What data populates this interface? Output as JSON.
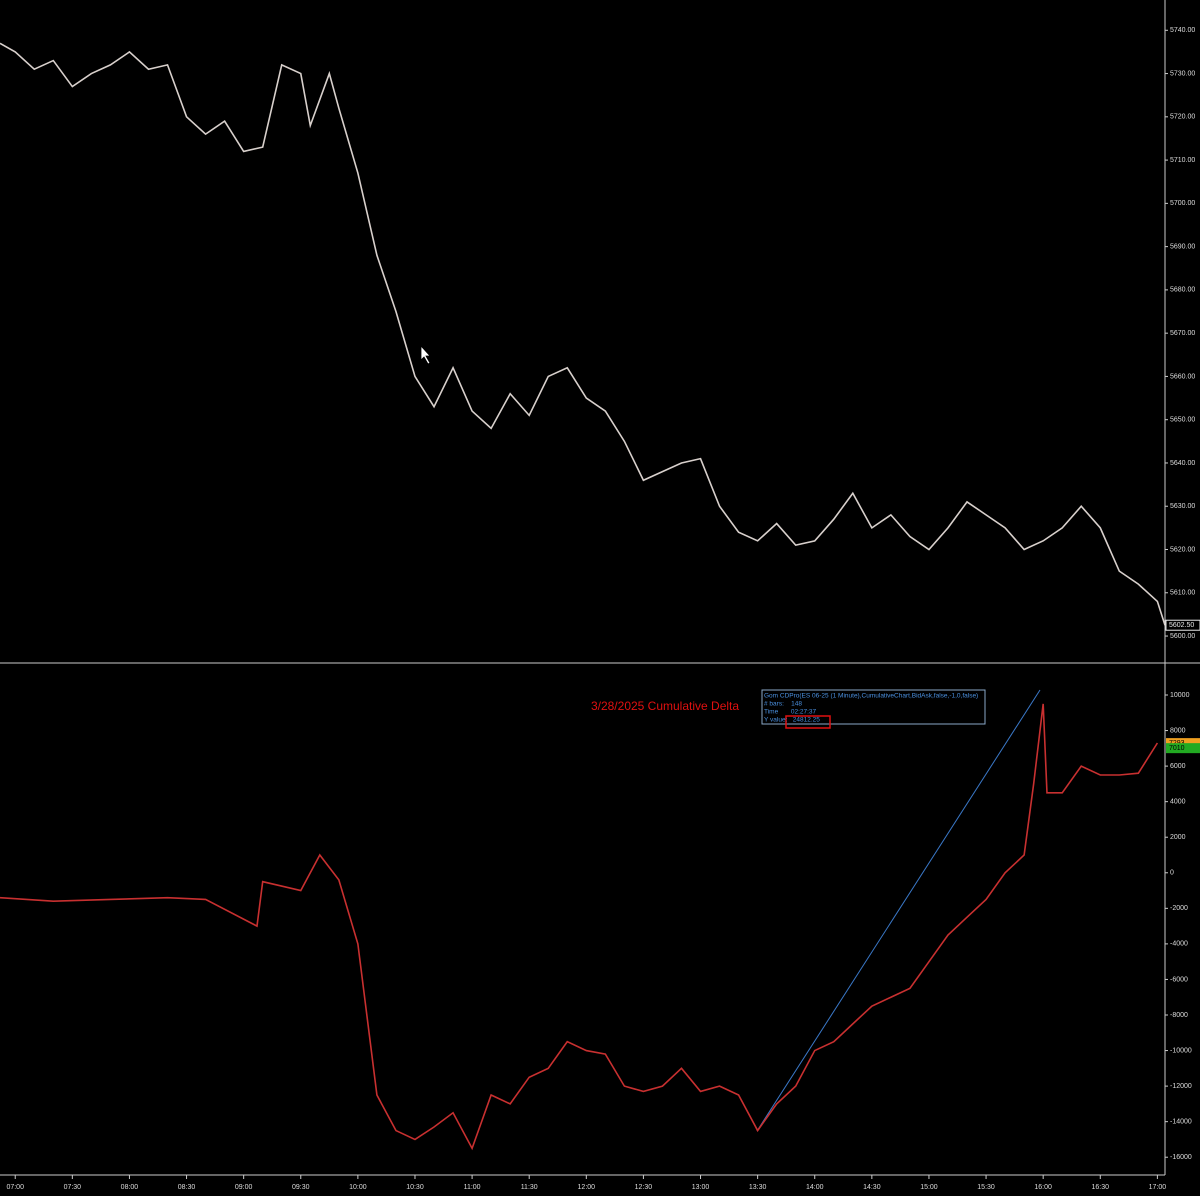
{
  "chart_data": [
    {
      "type": "line",
      "color": "#d8d0cc",
      "xlim": [
        412,
        1024
      ],
      "ylim": [
        5594,
        5747
      ],
      "yticks": [
        {
          "value": 5600,
          "label": "5600.00"
        },
        {
          "value": 5610,
          "label": "5610.00"
        },
        {
          "value": 5620,
          "label": "5620.00"
        },
        {
          "value": 5630,
          "label": "5630.00"
        },
        {
          "value": 5640,
          "label": "5640.00"
        },
        {
          "value": 5650,
          "label": "5650.00"
        },
        {
          "value": 5660,
          "label": "5660.00"
        },
        {
          "value": 5670,
          "label": "5670.00"
        },
        {
          "value": 5680,
          "label": "5680.00"
        },
        {
          "value": 5690,
          "label": "5690.00"
        },
        {
          "value": 5700,
          "label": "5700.00"
        },
        {
          "value": 5710,
          "label": "5710.00"
        },
        {
          "value": 5720,
          "label": "5720.00"
        },
        {
          "value": 5730,
          "label": "5730.00"
        },
        {
          "value": 5740,
          "label": "5740.00"
        }
      ],
      "x": [
        412,
        420,
        430,
        440,
        450,
        460,
        470,
        480,
        490,
        500,
        510,
        520,
        530,
        540,
        550,
        560,
        570,
        575,
        585,
        590,
        600,
        610,
        620,
        630,
        640,
        650,
        660,
        670,
        680,
        690,
        700,
        710,
        720,
        730,
        740,
        750,
        760,
        770,
        780,
        790,
        800,
        810,
        820,
        830,
        840,
        850,
        860,
        870,
        880,
        890,
        900,
        910,
        920,
        930,
        940,
        950,
        960,
        970,
        980,
        990,
        1000,
        1010,
        1020,
        1024
      ],
      "values": [
        5737,
        5735,
        5731,
        5733,
        5727,
        5730,
        5732,
        5735,
        5731,
        5732,
        5720,
        5716,
        5719,
        5712,
        5713,
        5732,
        5730,
        5718,
        5730,
        5722,
        5707,
        5688,
        5675,
        5660,
        5653,
        5662,
        5652,
        5648,
        5656,
        5651,
        5660,
        5662,
        5655,
        5652,
        5645,
        5636,
        5638,
        5640,
        5641,
        5630,
        5624,
        5622,
        5626,
        5621,
        5622,
        5627,
        5633,
        5625,
        5628,
        5623,
        5620,
        5625,
        5631,
        5628,
        5625,
        5620,
        5622,
        5625,
        5630,
        5625,
        5615,
        5612,
        5608,
        5602.5
      ],
      "tags": [
        {
          "value": 5602.5,
          "label": "5602.50",
          "color": "#e8e8e8"
        }
      ]
    },
    {
      "type": "line",
      "color": "#c83030",
      "xlim": [
        412,
        1024
      ],
      "ylim": [
        -17000,
        11800
      ],
      "yticks": [
        -16000,
        -14000,
        -12000,
        -10000,
        -8000,
        -6000,
        -4000,
        -2000,
        0,
        2000,
        4000,
        6000,
        8000,
        10000
      ],
      "xticks": [
        {
          "value": 420,
          "label": "07:00"
        },
        {
          "value": 450,
          "label": "07:30"
        },
        {
          "value": 480,
          "label": "08:00"
        },
        {
          "value": 510,
          "label": "08:30"
        },
        {
          "value": 540,
          "label": "09:00"
        },
        {
          "value": 570,
          "label": "09:30"
        },
        {
          "value": 600,
          "label": "10:00"
        },
        {
          "value": 630,
          "label": "10:30"
        },
        {
          "value": 660,
          "label": "11:00"
        },
        {
          "value": 690,
          "label": "11:30"
        },
        {
          "value": 720,
          "label": "12:00"
        },
        {
          "value": 750,
          "label": "12:30"
        },
        {
          "value": 780,
          "label": "13:00"
        },
        {
          "value": 810,
          "label": "13:30"
        },
        {
          "value": 840,
          "label": "14:00"
        },
        {
          "value": 870,
          "label": "14:30"
        },
        {
          "value": 900,
          "label": "15:00"
        },
        {
          "value": 930,
          "label": "15:30"
        },
        {
          "value": 960,
          "label": "16:00"
        },
        {
          "value": 990,
          "label": "16:30"
        },
        {
          "value": 1020,
          "label": "17:00"
        }
      ],
      "x": [
        412,
        440,
        470,
        500,
        520,
        547,
        550,
        570,
        580,
        590,
        600,
        610,
        620,
        630,
        640,
        650,
        660,
        670,
        680,
        690,
        700,
        710,
        720,
        730,
        740,
        750,
        760,
        770,
        780,
        790,
        800,
        810,
        820,
        830,
        840,
        850,
        860,
        870,
        880,
        890,
        900,
        910,
        920,
        930,
        940,
        950,
        955,
        960,
        962,
        970,
        980,
        990,
        1000,
        1010,
        1020
      ],
      "values": [
        -1400,
        -1600,
        -1500,
        -1400,
        -1500,
        -3000,
        -500,
        -1000,
        1000,
        -400,
        -4000,
        -12500,
        -14500,
        -15000,
        -14300,
        -13500,
        -15500,
        -12500,
        -13000,
        -11500,
        -11000,
        -9500,
        -10000,
        -10200,
        -12000,
        -12300,
        -12000,
        -11000,
        -12300,
        -12000,
        -12500,
        -14500,
        -13000,
        -12000,
        -10000,
        -9500,
        -8500,
        -7500,
        -7000,
        -6500,
        -5000,
        -3500,
        -2500,
        -1500,
        0,
        1000,
        5000,
        9500,
        4500,
        4500,
        6000,
        5500,
        5500,
        5600,
        7300
      ],
      "tags": [
        {
          "value": 7293,
          "label": "7293",
          "color": "#f0a020"
        },
        {
          "value": 7010,
          "label": "7010",
          "color": "#22aa22"
        }
      ],
      "annotation": "3/28/2025 Cumulative Delta",
      "tooltip": [
        "Gom CDPro(ES 06-25 (1 Minute),CumulativeChart,BidAsk,false,-1,0,false)",
        "# bars:    148",
        "Time       02:27:37",
        "Y value:   24812.25"
      ]
    }
  ]
}
